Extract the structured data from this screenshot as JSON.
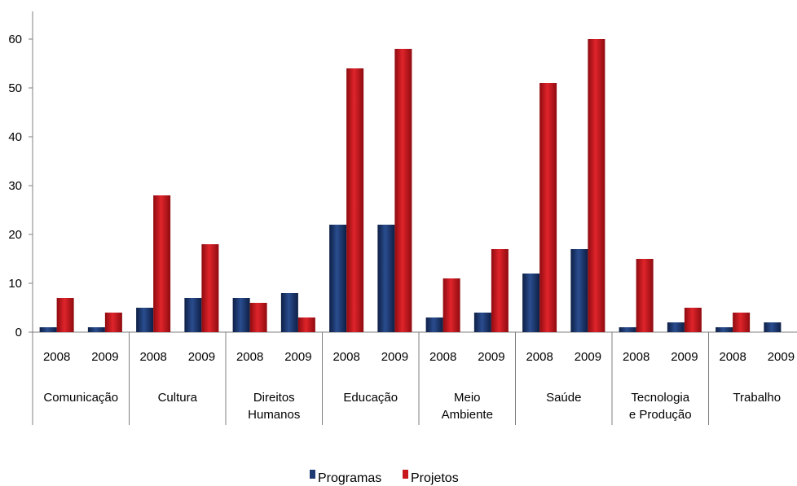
{
  "chart_data": {
    "type": "bar",
    "groups": [
      {
        "name": "Comunicação",
        "lines": [
          "Comunicação"
        ]
      },
      {
        "name": "Cultura",
        "lines": [
          "Cultura"
        ]
      },
      {
        "name": "Direitos Humanos",
        "lines": [
          "Direitos",
          "Humanos"
        ]
      },
      {
        "name": "Educação",
        "lines": [
          "Educação"
        ]
      },
      {
        "name": "Meio Ambiente",
        "lines": [
          "Meio",
          "Ambiente"
        ]
      },
      {
        "name": "Saúde",
        "lines": [
          "Saúde"
        ]
      },
      {
        "name": "Tecnologia e Produção",
        "lines": [
          "Tecnologia",
          "e Produção"
        ]
      },
      {
        "name": "Trabalho",
        "lines": [
          "Trabalho"
        ]
      }
    ],
    "years": [
      "2008",
      "2009"
    ],
    "series": [
      {
        "name": "Programas",
        "color": "#1f3a73",
        "values": [
          1,
          1,
          5,
          7,
          7,
          8,
          22,
          22,
          3,
          4,
          12,
          17,
          1,
          2,
          1,
          2
        ]
      },
      {
        "name": "Projetos",
        "color": "#c8161d",
        "values": [
          7,
          4,
          28,
          18,
          6,
          3,
          54,
          58,
          11,
          17,
          51,
          60,
          15,
          5,
          4,
          0
        ]
      }
    ],
    "ylim": [
      0,
      60
    ],
    "yticks": [
      0,
      10,
      20,
      30,
      40,
      50,
      60
    ],
    "legend_position": "bottom-center",
    "grid": false
  }
}
